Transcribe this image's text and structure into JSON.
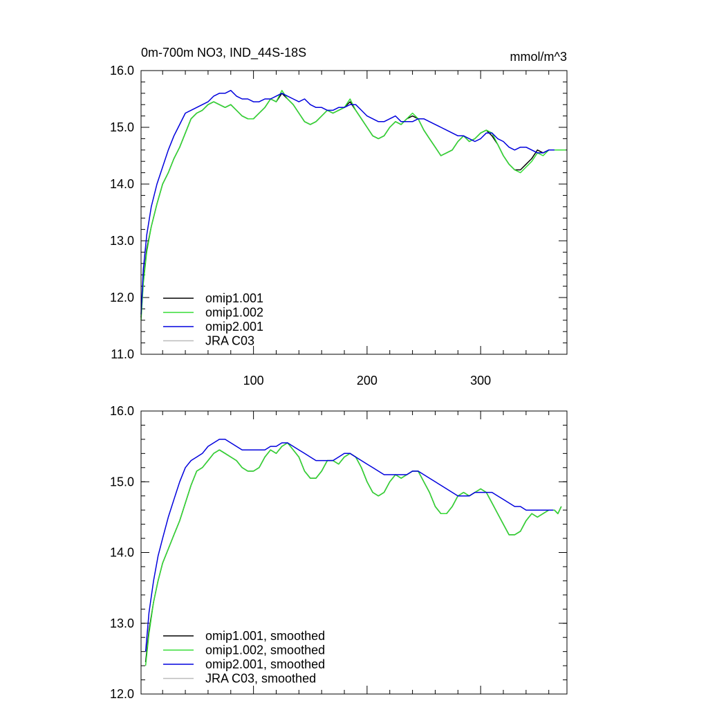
{
  "chart_data": [
    {
      "type": "line",
      "title": "0m-700m NO3, IND_44S-18S",
      "units_label": "mmol/m^3",
      "xlabel": "",
      "ylabel": "",
      "xlim": [
        1,
        376
      ],
      "ylim": [
        11.0,
        16.0
      ],
      "x_ticks": [
        100,
        200,
        300
      ],
      "x_tick_labels": [
        "100",
        "200",
        "300"
      ],
      "y_ticks": [
        11.0,
        12.0,
        13.0,
        14.0,
        15.0,
        16.0
      ],
      "y_tick_labels": [
        "11.0",
        "12.0",
        "13.0",
        "14.0",
        "15.0",
        "16.0"
      ],
      "grid": false,
      "legend_position": "bottom-left",
      "series": [
        {
          "name": "omip1.001",
          "color": "#000000",
          "x": [
            1,
            3,
            6,
            10,
            15,
            20,
            25,
            30,
            35,
            40,
            45,
            50,
            55,
            60,
            65,
            70,
            75,
            80,
            85,
            90,
            95,
            100,
            105,
            110,
            115,
            120,
            125,
            130,
            135,
            140,
            145,
            150,
            155,
            160,
            165,
            170,
            175,
            180,
            185,
            190,
            195,
            200,
            205,
            210,
            215,
            220,
            225,
            230,
            235,
            240,
            245,
            250,
            255,
            260,
            265,
            270,
            275,
            280,
            285,
            290,
            295,
            300,
            305,
            310,
            315,
            320,
            325,
            330,
            335,
            340,
            345,
            350,
            355,
            360,
            365,
            370,
            375
          ],
          "y": [
            11.65,
            12.3,
            12.85,
            13.25,
            13.65,
            14.0,
            14.2,
            14.45,
            14.65,
            14.9,
            15.15,
            15.25,
            15.3,
            15.4,
            15.45,
            15.4,
            15.35,
            15.4,
            15.3,
            15.2,
            15.15,
            15.15,
            15.25,
            15.35,
            15.5,
            15.45,
            15.6,
            15.5,
            15.4,
            15.25,
            15.1,
            15.05,
            15.1,
            15.2,
            15.3,
            15.25,
            15.3,
            15.35,
            15.45,
            15.3,
            15.15,
            15.0,
            14.85,
            14.8,
            14.85,
            15.0,
            15.1,
            15.05,
            15.15,
            15.2,
            15.15,
            14.95,
            14.8,
            14.65,
            14.5,
            14.55,
            14.6,
            14.75,
            14.85,
            14.75,
            14.8,
            14.9,
            14.95,
            14.85,
            14.7,
            14.5,
            14.35,
            14.25,
            14.25,
            14.35,
            14.45,
            14.6,
            14.55,
            14.6,
            14.6,
            14.6,
            14.6
          ]
        },
        {
          "name": "omip1.002",
          "color": "#33dd33",
          "x": [
            1,
            3,
            6,
            10,
            15,
            20,
            25,
            30,
            35,
            40,
            45,
            50,
            55,
            60,
            65,
            70,
            75,
            80,
            85,
            90,
            95,
            100,
            105,
            110,
            115,
            120,
            125,
            130,
            135,
            140,
            145,
            150,
            155,
            160,
            165,
            170,
            175,
            180,
            185,
            190,
            195,
            200,
            205,
            210,
            215,
            220,
            225,
            230,
            235,
            240,
            245,
            250,
            255,
            260,
            265,
            270,
            275,
            280,
            285,
            290,
            295,
            300,
            305,
            310,
            315,
            320,
            325,
            330,
            335,
            340,
            345,
            350,
            355,
            360,
            365,
            370,
            375
          ],
          "y": [
            11.6,
            12.25,
            12.8,
            13.25,
            13.65,
            14.0,
            14.2,
            14.45,
            14.65,
            14.9,
            15.15,
            15.25,
            15.3,
            15.4,
            15.45,
            15.4,
            15.35,
            15.4,
            15.3,
            15.2,
            15.15,
            15.15,
            15.25,
            15.35,
            15.5,
            15.45,
            15.65,
            15.5,
            15.4,
            15.25,
            15.1,
            15.05,
            15.1,
            15.2,
            15.3,
            15.25,
            15.3,
            15.35,
            15.5,
            15.3,
            15.15,
            15.0,
            14.85,
            14.8,
            14.85,
            15.0,
            15.1,
            15.05,
            15.15,
            15.25,
            15.15,
            14.95,
            14.8,
            14.65,
            14.5,
            14.55,
            14.6,
            14.75,
            14.85,
            14.75,
            14.8,
            14.9,
            14.95,
            14.9,
            14.7,
            14.5,
            14.35,
            14.25,
            14.2,
            14.3,
            14.4,
            14.55,
            14.5,
            14.6,
            14.6,
            14.6,
            14.6
          ]
        },
        {
          "name": "omip2.001",
          "color": "#0000dd",
          "x": [
            1,
            3,
            6,
            10,
            15,
            20,
            25,
            30,
            35,
            40,
            45,
            50,
            55,
            60,
            65,
            70,
            75,
            80,
            85,
            90,
            95,
            100,
            105,
            110,
            115,
            120,
            125,
            130,
            135,
            140,
            145,
            150,
            155,
            160,
            165,
            170,
            175,
            180,
            185,
            190,
            195,
            200,
            205,
            210,
            215,
            220,
            225,
            230,
            235,
            240,
            245,
            250,
            255,
            260,
            265,
            270,
            275,
            280,
            285,
            290,
            295,
            300,
            305,
            310,
            315,
            320,
            325,
            330,
            335,
            340,
            345,
            350,
            355,
            360,
            365
          ],
          "y": [
            11.7,
            12.5,
            13.1,
            13.6,
            14.0,
            14.3,
            14.6,
            14.85,
            15.05,
            15.25,
            15.3,
            15.35,
            15.4,
            15.45,
            15.55,
            15.6,
            15.6,
            15.65,
            15.55,
            15.5,
            15.5,
            15.45,
            15.45,
            15.5,
            15.5,
            15.55,
            15.6,
            15.55,
            15.5,
            15.45,
            15.5,
            15.4,
            15.35,
            15.35,
            15.3,
            15.3,
            15.35,
            15.35,
            15.4,
            15.4,
            15.3,
            15.2,
            15.15,
            15.1,
            15.1,
            15.15,
            15.2,
            15.1,
            15.1,
            15.1,
            15.15,
            15.15,
            15.1,
            15.05,
            15.0,
            14.95,
            14.9,
            14.85,
            14.85,
            14.8,
            14.75,
            14.8,
            14.9,
            14.9,
            14.8,
            14.75,
            14.65,
            14.6,
            14.65,
            14.65,
            14.6,
            14.55,
            14.55,
            14.6,
            14.6
          ]
        },
        {
          "name": "JRA C03",
          "color": "#bbbbbb",
          "x": [],
          "y": []
        }
      ]
    },
    {
      "type": "line",
      "title": "",
      "xlabel": "",
      "ylabel": "",
      "xlim": [
        1,
        376
      ],
      "ylim": [
        12.0,
        16.0
      ],
      "x_ticks": [
        100,
        200,
        300
      ],
      "y_ticks": [
        12.0,
        13.0,
        14.0,
        15.0,
        16.0
      ],
      "y_tick_labels": [
        "12.0",
        "13.0",
        "14.0",
        "15.0",
        "16.0"
      ],
      "grid": false,
      "legend_position": "bottom-left",
      "series": [
        {
          "name": "omip1.001, smoothed",
          "color": "#000000",
          "x": [
            5,
            8,
            12,
            16,
            20,
            25,
            30,
            35,
            40,
            45,
            50,
            55,
            60,
            65,
            70,
            75,
            80,
            85,
            90,
            95,
            100,
            105,
            110,
            115,
            120,
            125,
            130,
            135,
            140,
            145,
            150,
            155,
            160,
            165,
            170,
            175,
            180,
            185,
            190,
            195,
            200,
            205,
            210,
            215,
            220,
            225,
            230,
            235,
            240,
            245,
            250,
            255,
            260,
            265,
            270,
            275,
            280,
            285,
            290,
            295,
            300,
            305,
            310,
            315,
            320,
            325,
            330,
            335,
            340,
            345,
            350,
            355,
            360,
            365,
            368,
            371
          ],
          "y": [
            12.45,
            12.9,
            13.3,
            13.6,
            13.85,
            14.05,
            14.25,
            14.45,
            14.7,
            14.95,
            15.15,
            15.2,
            15.3,
            15.4,
            15.45,
            15.4,
            15.35,
            15.3,
            15.2,
            15.15,
            15.15,
            15.2,
            15.35,
            15.45,
            15.4,
            15.5,
            15.55,
            15.45,
            15.35,
            15.15,
            15.05,
            15.05,
            15.15,
            15.3,
            15.3,
            15.25,
            15.35,
            15.4,
            15.35,
            15.2,
            15.0,
            14.85,
            14.8,
            14.85,
            15.0,
            15.1,
            15.05,
            15.1,
            15.15,
            15.15,
            15.0,
            14.85,
            14.65,
            14.55,
            14.55,
            14.65,
            14.8,
            14.85,
            14.8,
            14.85,
            14.9,
            14.85,
            14.7,
            14.55,
            14.4,
            14.25,
            14.25,
            14.3,
            14.45,
            14.55,
            14.5,
            14.55,
            14.6,
            14.6,
            14.55,
            14.65
          ]
        },
        {
          "name": "omip1.002, smoothed",
          "color": "#33dd33",
          "x": [
            5,
            8,
            12,
            16,
            20,
            25,
            30,
            35,
            40,
            45,
            50,
            55,
            60,
            65,
            70,
            75,
            80,
            85,
            90,
            95,
            100,
            105,
            110,
            115,
            120,
            125,
            130,
            135,
            140,
            145,
            150,
            155,
            160,
            165,
            170,
            175,
            180,
            185,
            190,
            195,
            200,
            205,
            210,
            215,
            220,
            225,
            230,
            235,
            240,
            245,
            250,
            255,
            260,
            265,
            270,
            275,
            280,
            285,
            290,
            295,
            300,
            305,
            310,
            315,
            320,
            325,
            330,
            335,
            340,
            345,
            350,
            355,
            360,
            365,
            368,
            371
          ],
          "y": [
            12.4,
            12.85,
            13.3,
            13.6,
            13.85,
            14.05,
            14.25,
            14.45,
            14.7,
            14.95,
            15.15,
            15.2,
            15.3,
            15.4,
            15.45,
            15.4,
            15.35,
            15.3,
            15.2,
            15.15,
            15.15,
            15.2,
            15.35,
            15.45,
            15.4,
            15.5,
            15.55,
            15.45,
            15.35,
            15.15,
            15.05,
            15.05,
            15.15,
            15.3,
            15.3,
            15.25,
            15.35,
            15.4,
            15.35,
            15.2,
            15.0,
            14.85,
            14.8,
            14.85,
            15.0,
            15.1,
            15.05,
            15.1,
            15.15,
            15.15,
            15.0,
            14.85,
            14.65,
            14.55,
            14.55,
            14.65,
            14.8,
            14.85,
            14.8,
            14.85,
            14.9,
            14.85,
            14.7,
            14.55,
            14.4,
            14.25,
            14.25,
            14.3,
            14.45,
            14.55,
            14.5,
            14.55,
            14.6,
            14.6,
            14.55,
            14.65
          ]
        },
        {
          "name": "omip2.001, smoothed",
          "color": "#0000dd",
          "x": [
            5,
            8,
            12,
            16,
            20,
            25,
            30,
            35,
            40,
            45,
            50,
            55,
            60,
            65,
            70,
            75,
            80,
            85,
            90,
            95,
            100,
            105,
            110,
            115,
            120,
            125,
            130,
            135,
            140,
            145,
            150,
            155,
            160,
            165,
            170,
            175,
            180,
            185,
            190,
            195,
            200,
            205,
            210,
            215,
            220,
            225,
            230,
            235,
            240,
            245,
            250,
            255,
            260,
            265,
            270,
            275,
            280,
            285,
            290,
            295,
            300,
            305,
            310,
            315,
            320,
            325,
            330,
            335,
            340,
            345,
            350,
            355,
            360,
            364
          ],
          "y": [
            12.6,
            13.15,
            13.6,
            13.95,
            14.2,
            14.5,
            14.75,
            15.0,
            15.2,
            15.3,
            15.35,
            15.4,
            15.5,
            15.55,
            15.6,
            15.6,
            15.55,
            15.5,
            15.45,
            15.45,
            15.45,
            15.45,
            15.45,
            15.5,
            15.5,
            15.55,
            15.55,
            15.5,
            15.45,
            15.4,
            15.35,
            15.3,
            15.3,
            15.3,
            15.3,
            15.35,
            15.4,
            15.4,
            15.35,
            15.3,
            15.25,
            15.2,
            15.15,
            15.1,
            15.1,
            15.1,
            15.1,
            15.1,
            15.15,
            15.15,
            15.1,
            15.05,
            15.0,
            14.95,
            14.9,
            14.85,
            14.8,
            14.8,
            14.8,
            14.85,
            14.85,
            14.85,
            14.85,
            14.8,
            14.75,
            14.7,
            14.65,
            14.65,
            14.6,
            14.6,
            14.6,
            14.6,
            14.6,
            14.6
          ]
        },
        {
          "name": "JRA C03, smoothed",
          "color": "#bbbbbb",
          "x": [],
          "y": []
        }
      ]
    }
  ]
}
